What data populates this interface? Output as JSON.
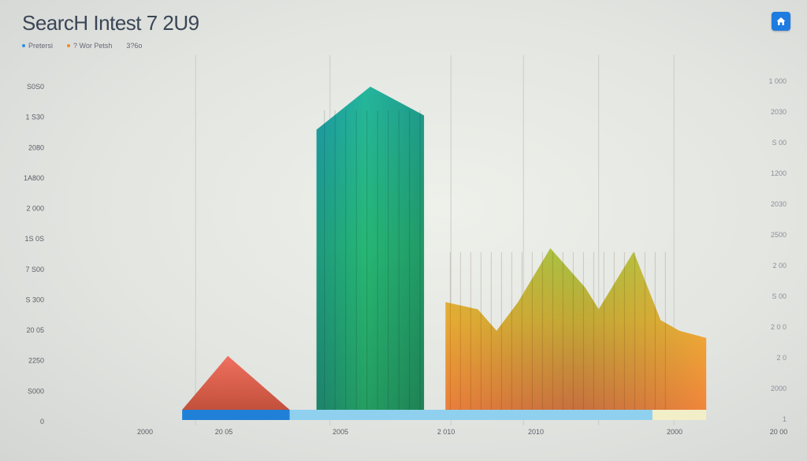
{
  "chart_data": {
    "type": "bar",
    "title": "SearcH Intest 7 2U9",
    "legend": [
      {
        "label": "Pretersi",
        "color": "#2d8fe0"
      },
      {
        "label": "? Wor  Petsh",
        "color": "#f08a2a"
      },
      {
        "label": "3?6o",
        "color": "#9aa0a6"
      }
    ],
    "y_ticks_left": [
      "S0S0",
      "1 S30",
      "2080",
      "1A800",
      "2 000",
      "1S 0S",
      "7 S00",
      "S 300",
      "20 05",
      "2250",
      "S000",
      "0"
    ],
    "y_ticks_right": [
      "1 000",
      "2030",
      "S 00",
      "1200",
      "2030",
      "2500",
      "2 00",
      "S 00",
      "2 0 0",
      "2 0",
      "2000",
      "1"
    ],
    "x_ticks": [
      "2000",
      "20 05",
      "2005",
      "2 010",
      "2010",
      "2000",
      "20 00"
    ],
    "xlim": [
      2000,
      2020
    ],
    "ylim": [
      0,
      90
    ],
    "series": [
      {
        "name": "peak-mountain",
        "values": [
          [
            2001.5,
            0
          ],
          [
            2003.2,
            15
          ],
          [
            2005.5,
            0
          ]
        ]
      },
      {
        "name": "tall-bars",
        "values": [
          [
            2006.5,
            78
          ],
          [
            2008.5,
            90
          ],
          [
            2010.5,
            82
          ],
          [
            2011.3,
            0
          ]
        ]
      },
      {
        "name": "ridge-bars",
        "values": [
          [
            2011.3,
            30
          ],
          [
            2012.5,
            28
          ],
          [
            2013.2,
            22
          ],
          [
            2014.0,
            30
          ],
          [
            2015.2,
            45
          ],
          [
            2016.5,
            34
          ],
          [
            2017.0,
            28
          ],
          [
            2018.3,
            44
          ],
          [
            2019.3,
            25
          ],
          [
            2020.0,
            22
          ],
          [
            2021.0,
            20
          ]
        ]
      }
    ],
    "baseline_segments": [
      {
        "name": "seg-blue",
        "from": 2001.5,
        "to": 2005.5
      },
      {
        "name": "seg-lightblue",
        "from": 2005.5,
        "to": 2019.0
      },
      {
        "name": "seg-cream",
        "from": 2019.0,
        "to": 2021.0
      }
    ],
    "grid": true
  },
  "ui": {
    "home_button_icon": "home-icon",
    "accent": "#1e7be0"
  }
}
